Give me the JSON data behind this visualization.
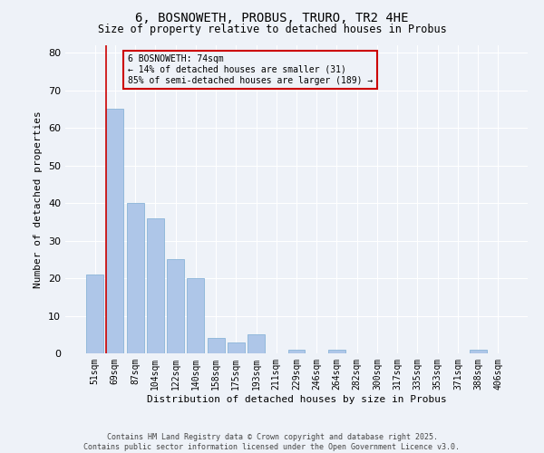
{
  "title": "6, BOSNOWETH, PROBUS, TRURO, TR2 4HE",
  "subtitle": "Size of property relative to detached houses in Probus",
  "xlabel": "Distribution of detached houses by size in Probus",
  "ylabel": "Number of detached properties",
  "categories": [
    "51sqm",
    "69sqm",
    "87sqm",
    "104sqm",
    "122sqm",
    "140sqm",
    "158sqm",
    "175sqm",
    "193sqm",
    "211sqm",
    "229sqm",
    "246sqm",
    "264sqm",
    "282sqm",
    "300sqm",
    "317sqm",
    "335sqm",
    "353sqm",
    "371sqm",
    "388sqm",
    "406sqm"
  ],
  "values": [
    21,
    65,
    40,
    36,
    25,
    20,
    4,
    3,
    5,
    0,
    1,
    0,
    1,
    0,
    0,
    0,
    0,
    0,
    0,
    1,
    0
  ],
  "bar_color": "#aec6e8",
  "bar_edgecolor": "#8ab4d8",
  "vline_color": "#cc0000",
  "vline_xindex": 1,
  "annotation_title": "6 BOSNOWETH: 74sqm",
  "annotation_line1": "← 14% of detached houses are smaller (31)",
  "annotation_line2": "85% of semi-detached houses are larger (189) →",
  "annotation_box_edgecolor": "#cc0000",
  "ylim": [
    0,
    82
  ],
  "yticks": [
    0,
    10,
    20,
    30,
    40,
    50,
    60,
    70,
    80
  ],
  "footer_line1": "Contains HM Land Registry data © Crown copyright and database right 2025.",
  "footer_line2": "Contains public sector information licensed under the Open Government Licence v3.0.",
  "background_color": "#eef2f8",
  "grid_color": "#ffffff",
  "title_fontsize": 10,
  "subtitle_fontsize": 8.5,
  "xlabel_fontsize": 8,
  "ylabel_fontsize": 8,
  "tick_fontsize": 7,
  "annotation_fontsize": 7,
  "footer_fontsize": 6
}
